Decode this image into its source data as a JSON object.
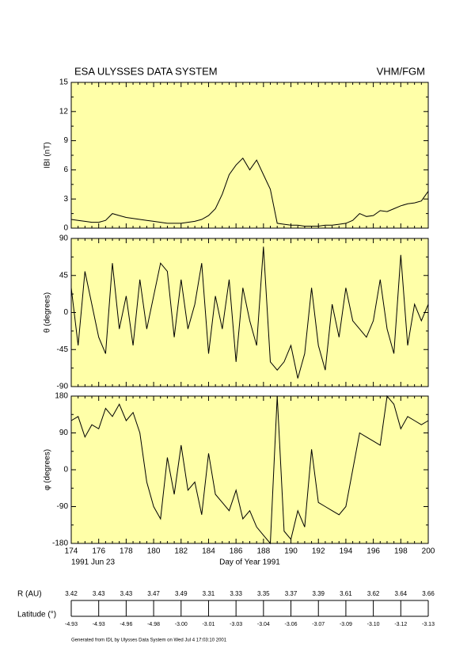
{
  "chart_data": [
    {
      "type": "line",
      "title": "ESA ULYSSES DATA SYSTEM",
      "subtitle": "VHM/FGM",
      "ylabel": "IBI (nT)",
      "panel_color": "#ffffa8",
      "x": [
        174,
        174.5,
        175,
        175.5,
        176,
        176.5,
        177,
        177.5,
        178,
        178.5,
        179,
        179.5,
        180,
        180.5,
        181,
        181.5,
        182,
        182.5,
        183,
        183.5,
        184,
        184.5,
        185,
        185.5,
        186,
        186.5,
        187,
        187.5,
        188,
        188.5,
        189,
        189.5,
        190,
        190.5,
        191,
        191.5,
        192,
        192.5,
        193,
        193.5,
        194,
        194.5,
        195,
        195.5,
        196,
        196.5,
        197,
        197.5,
        198,
        198.5,
        199,
        199.5,
        200
      ],
      "series": [
        {
          "color": "#000000",
          "values": [
            0.9,
            0.8,
            0.7,
            0.6,
            0.6,
            0.8,
            1.5,
            1.3,
            1.1,
            1.0,
            0.9,
            0.8,
            0.7,
            0.6,
            0.5,
            0.5,
            0.5,
            0.6,
            0.7,
            0.9,
            1.3,
            2.0,
            3.5,
            5.5,
            6.5,
            7.2,
            6.0,
            7.0,
            5.5,
            4.0,
            0.5,
            0.4,
            0.3,
            0.3,
            0.2,
            0.2,
            0.2,
            0.3,
            0.3,
            0.4,
            0.5,
            0.8,
            1.5,
            1.2,
            1.3,
            1.8,
            1.7,
            2.0,
            2.3,
            2.5,
            2.6,
            2.8,
            3.8
          ]
        }
      ],
      "xlim": [
        174,
        200
      ],
      "ylim": [
        0,
        15
      ],
      "yticks": [
        0,
        3,
        6,
        9,
        12,
        15
      ],
      "xticks": [
        174,
        176,
        178,
        180,
        182,
        184,
        186,
        188,
        190,
        192,
        194,
        196,
        198,
        200
      ]
    },
    {
      "type": "line",
      "ylabel": "θ (degrees)",
      "panel_color": "#ffffa8",
      "x": [
        174,
        174.5,
        175,
        175.5,
        176,
        176.5,
        177,
        177.5,
        178,
        178.5,
        179,
        179.5,
        180,
        180.5,
        181,
        181.5,
        182,
        182.5,
        183,
        183.5,
        184,
        184.5,
        185,
        185.5,
        186,
        186.5,
        187,
        187.5,
        188,
        188.5,
        189,
        189.5,
        190,
        190.5,
        191,
        191.5,
        192,
        192.5,
        193,
        193.5,
        194,
        194.5,
        195,
        195.5,
        196,
        196.5,
        197,
        197.5,
        198,
        198.5,
        199,
        199.5,
        200
      ],
      "series": [
        {
          "color": "#000000",
          "values": [
            30,
            -40,
            50,
            10,
            -30,
            -50,
            60,
            -20,
            20,
            -40,
            40,
            -20,
            20,
            60,
            50,
            -30,
            40,
            -20,
            10,
            60,
            -50,
            20,
            -20,
            40,
            -60,
            30,
            -10,
            -40,
            80,
            -60,
            -70,
            -60,
            -40,
            -80,
            -50,
            30,
            -40,
            -70,
            10,
            -30,
            30,
            -10,
            -20,
            -30,
            -10,
            40,
            -20,
            -50,
            70,
            -40,
            10,
            -10,
            10
          ]
        }
      ],
      "xlim": [
        174,
        200
      ],
      "ylim": [
        -90,
        90
      ],
      "yticks": [
        -90,
        -45,
        0,
        45,
        90
      ],
      "xticks": [
        174,
        176,
        178,
        180,
        182,
        184,
        186,
        188,
        190,
        192,
        194,
        196,
        198,
        200
      ]
    },
    {
      "type": "line",
      "ylabel": "φ (degrees)",
      "xlabel": "Day of Year 1991",
      "start_date": "1991 Jun 23",
      "panel_color": "#ffffa8",
      "x": [
        174,
        174.5,
        175,
        175.5,
        176,
        176.5,
        177,
        177.5,
        178,
        178.5,
        179,
        179.5,
        180,
        180.5,
        181,
        181.5,
        182,
        182.5,
        183,
        183.5,
        184,
        184.5,
        185,
        185.5,
        186,
        186.5,
        187,
        187.5,
        188,
        188.5,
        189,
        189.5,
        190,
        190.5,
        191,
        191.5,
        192,
        192.5,
        193,
        193.5,
        194,
        194.5,
        195,
        195.5,
        196,
        196.5,
        197,
        197.5,
        198,
        198.5,
        199,
        199.5,
        200
      ],
      "series": [
        {
          "color": "#000000",
          "values": [
            120,
            130,
            80,
            110,
            100,
            150,
            130,
            160,
            120,
            140,
            90,
            -30,
            -90,
            -120,
            30,
            -60,
            60,
            -50,
            -30,
            -110,
            40,
            -60,
            -80,
            -100,
            -50,
            -120,
            -100,
            -140,
            -160,
            -180,
            180,
            -150,
            -170,
            -100,
            -140,
            50,
            -80,
            -90,
            -100,
            -110,
            -90,
            0,
            90,
            80,
            70,
            60,
            180,
            160,
            100,
            130,
            120,
            110,
            120
          ]
        }
      ],
      "xlim": [
        174,
        200
      ],
      "ylim": [
        -180,
        180
      ],
      "yticks": [
        -180,
        -90,
        0,
        90,
        180
      ],
      "xticks": [
        174,
        176,
        178,
        180,
        182,
        184,
        186,
        188,
        190,
        192,
        194,
        196,
        198,
        200
      ]
    }
  ],
  "orbit": {
    "r_label": "R (AU)",
    "lat_label": "Latitude (°)",
    "x": [
      174,
      176,
      178,
      180,
      182,
      184,
      186,
      188,
      190,
      192,
      194,
      196,
      198,
      200
    ],
    "r": [
      3.42,
      3.43,
      3.43,
      3.47,
      3.49,
      3.31,
      3.33,
      3.35,
      3.37,
      3.39,
      3.61,
      3.62,
      3.64,
      3.66
    ],
    "lat": [
      -4.93,
      -4.93,
      -4.96,
      -4.98,
      {
        "value": -3,
        "label": "-3.00"
      },
      -3.01,
      -3.03,
      -3.04,
      -3.06,
      -3.07,
      -3.09,
      {
        "value": -3.1,
        "label": "-3.10"
      },
      -3.12,
      -3.13
    ]
  },
  "footer": "Generated from IDL by Ulysses Data System on Wed Jul 4 17:03:10 2001"
}
